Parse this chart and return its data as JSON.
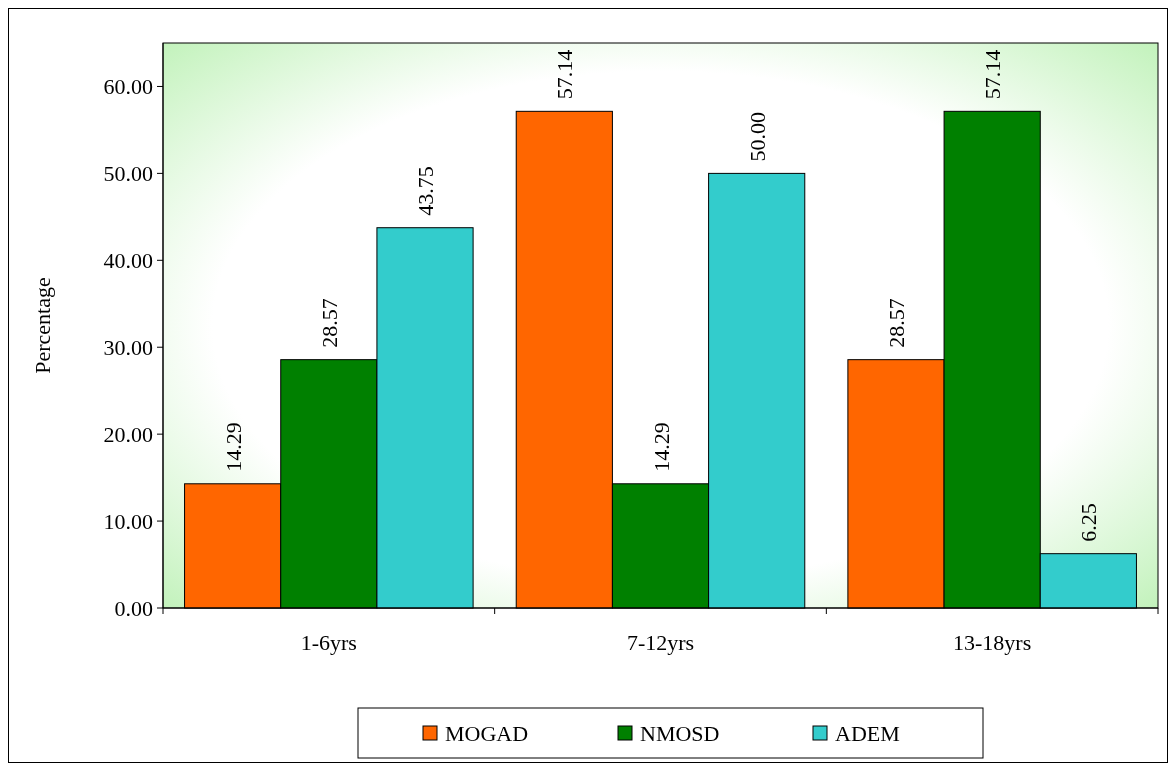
{
  "chart_data": {
    "type": "bar",
    "ylabel": "Percentage",
    "categories": [
      "1-6yrs",
      "7-12yrs",
      "13-18yrs"
    ],
    "series": [
      {
        "name": "MOGAD",
        "color": "#ff6600",
        "values": [
          14.29,
          57.14,
          28.57
        ],
        "value_labels": [
          "14.29",
          "57.14",
          "28.57"
        ]
      },
      {
        "name": "NMOSD",
        "color": "#008000",
        "values": [
          28.57,
          14.29,
          57.14
        ],
        "value_labels": [
          "28.57",
          "14.29",
          "57.14"
        ]
      },
      {
        "name": "ADEM",
        "color": "#33cccc",
        "values": [
          43.75,
          50.0,
          6.25
        ],
        "value_labels": [
          "43.75",
          "50.00",
          "6.25"
        ]
      }
    ],
    "ylim": [
      0,
      65
    ],
    "yticks": [
      {
        "value": 0,
        "label": "0.00"
      },
      {
        "value": 10,
        "label": "10.00"
      },
      {
        "value": 20,
        "label": "20.00"
      },
      {
        "value": 30,
        "label": "30.00"
      },
      {
        "value": 40,
        "label": "40.00"
      },
      {
        "value": 50,
        "label": "50.00"
      },
      {
        "value": 60,
        "label": "60.00"
      }
    ],
    "grid": false,
    "legend": "bottom"
  }
}
